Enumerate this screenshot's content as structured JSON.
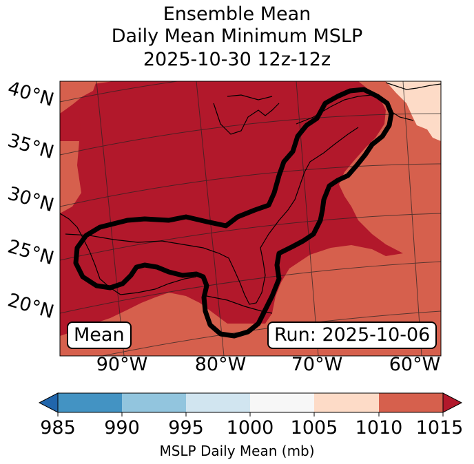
{
  "title": {
    "line1": "Ensemble Mean",
    "line2": "Daily Mean Minimum MSLP",
    "line3": "2025-10-30 12z-12z"
  },
  "map": {
    "lat_labels": [
      "40°N",
      "35°N",
      "30°N",
      "25°N",
      "20°N"
    ],
    "lon_labels": [
      "90°W",
      "80°W",
      "70°W",
      "60°W"
    ],
    "mean_label": "Mean",
    "run_label": "Run: 2025-10-06",
    "colors": {
      "c1005_1010": "#fddbc7",
      "c1010_1015": "#d6604d",
      "c_gt_1015": "#b2182b"
    }
  },
  "colorbar": {
    "ticks": [
      "985",
      "990",
      "995",
      "1000",
      "1005",
      "1010",
      "1015"
    ],
    "label": "MSLP Daily Mean (mb)",
    "colors": [
      "#2166ac",
      "#4393c3",
      "#92c5de",
      "#d1e5f0",
      "#f7f7f7",
      "#fddbc7",
      "#d6604d",
      "#b2182b"
    ]
  }
}
